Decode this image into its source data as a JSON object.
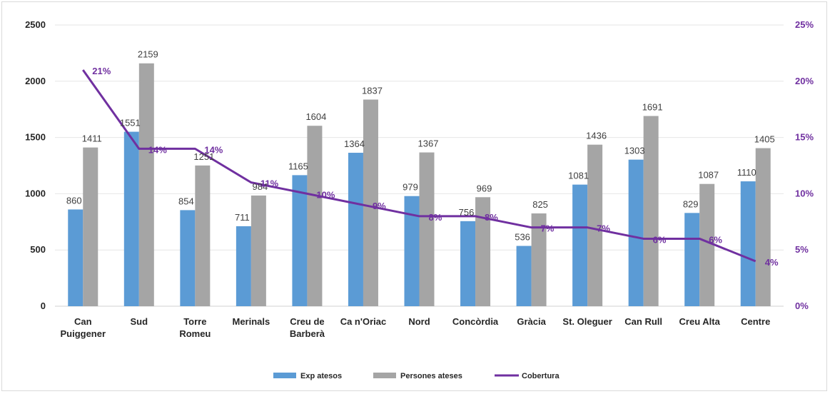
{
  "colors": {
    "exp": "#5b9bd5",
    "persones": "#a5a5a5",
    "cobertura": "#7030a0",
    "grid": "#e6e6e6",
    "text": "#262626"
  },
  "chart_data": {
    "type": "bar",
    "categories": [
      [
        "Can",
        "Puiggener"
      ],
      [
        "Sud"
      ],
      [
        "Torre",
        "Romeu"
      ],
      [
        "Merinals"
      ],
      [
        "Creu de",
        "Barberà"
      ],
      [
        "Ca n'Oriac"
      ],
      [
        "Nord"
      ],
      [
        "Concòrdia"
      ],
      [
        "Gràcia"
      ],
      [
        "St. Oleguer"
      ],
      [
        "Can Rull"
      ],
      [
        "Creu Alta"
      ],
      [
        "Centre"
      ]
    ],
    "series": [
      {
        "name": "Exp atesos",
        "type": "bar",
        "axis": "left",
        "values": [
          860,
          1551,
          854,
          711,
          1165,
          1364,
          979,
          756,
          536,
          1081,
          1303,
          829,
          1110
        ]
      },
      {
        "name": "Persones ateses",
        "type": "bar",
        "axis": "left",
        "values": [
          1411,
          2159,
          1251,
          984,
          1604,
          1837,
          1367,
          969,
          825,
          1436,
          1691,
          1087,
          1405
        ]
      },
      {
        "name": "Cobertura",
        "type": "line",
        "axis": "right",
        "values": [
          21,
          14,
          14,
          11,
          10,
          9,
          8,
          8,
          7,
          7,
          6,
          6,
          4
        ],
        "labels": [
          "21%",
          "14%",
          "14%",
          "11%",
          "10%",
          "9%",
          "8%",
          "8%",
          "7%",
          "7%",
          "6%",
          "6%",
          "4%"
        ]
      }
    ],
    "left_axis": {
      "ylim": [
        0,
        2500
      ],
      "ticks": [
        "0",
        "500",
        "1000",
        "1500",
        "2000",
        "2500"
      ]
    },
    "right_axis": {
      "ylim": [
        0,
        25
      ],
      "ticks": [
        "0%",
        "5%",
        "10%",
        "15%",
        "20%",
        "25%"
      ]
    },
    "grid": true,
    "legend_position": "bottom"
  }
}
